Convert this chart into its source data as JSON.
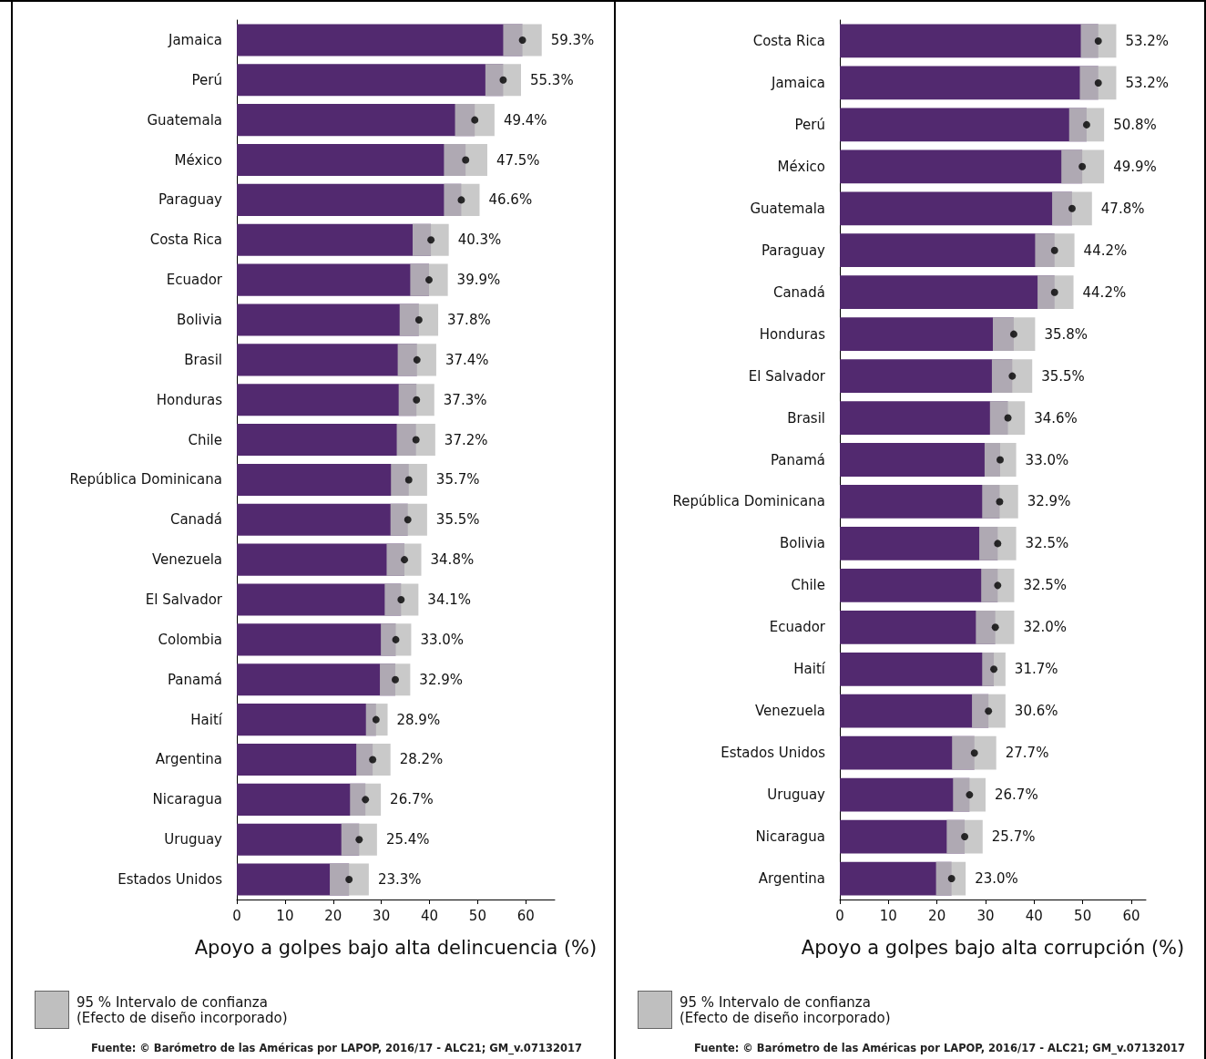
{
  "chart_data": [
    {
      "type": "bar",
      "orientation": "horizontal",
      "xlabel": "Apoyo a golpes bajo alta delincuencia (%)",
      "categories": [
        "Jamaica",
        "Perú",
        "Guatemala",
        "México",
        "Paraguay",
        "Costa Rica",
        "Ecuador",
        "Bolivia",
        "Brasil",
        "Honduras",
        "Chile",
        "República Dominicana",
        "Canadá",
        "Venezuela",
        "El Salvador",
        "Colombia",
        "Panamá",
        "Haití",
        "Argentina",
        "Nicaragua",
        "Uruguay",
        "Estados Unidos"
      ],
      "series": [
        {
          "color": "#52296f",
          "values": [
            59.3,
            55.3,
            49.4,
            47.5,
            46.6,
            40.3,
            39.9,
            37.8,
            37.4,
            37.3,
            37.2,
            35.7,
            35.5,
            34.8,
            34.1,
            33.0,
            32.9,
            28.9,
            28.2,
            26.7,
            25.4,
            23.3
          ]
        },
        {
          "type": "scatter",
          "color": "#000000",
          "values": [
            59.3,
            55.3,
            49.4,
            47.5,
            46.6,
            40.3,
            39.9,
            37.8,
            37.4,
            37.3,
            37.2,
            35.7,
            35.5,
            34.8,
            34.1,
            33.0,
            32.9,
            28.9,
            28.2,
            26.7,
            25.4,
            23.3
          ],
          "errors": [
            [
              55.3,
              63.3
            ],
            [
              51.6,
              59.0
            ],
            [
              45.3,
              53.5
            ],
            [
              43.0,
              52.0
            ],
            [
              43.0,
              50.4
            ],
            [
              36.5,
              44.0
            ],
            [
              36.0,
              43.8
            ],
            [
              33.8,
              41.8
            ],
            [
              33.4,
              41.4
            ],
            [
              33.6,
              41.0
            ],
            [
              33.2,
              41.2
            ],
            [
              32.0,
              39.5
            ],
            [
              31.9,
              39.5
            ],
            [
              31.1,
              38.3
            ],
            [
              30.7,
              37.7
            ],
            [
              29.9,
              36.2
            ],
            [
              29.7,
              36.0
            ],
            [
              26.8,
              31.3
            ],
            [
              24.8,
              31.9
            ],
            [
              23.5,
              29.9
            ],
            [
              21.7,
              29.1
            ],
            [
              19.3,
              27.4
            ]
          ],
          "value_labels": [
            "59.3%",
            "55.3%",
            "49.4%",
            "47.5%",
            "46.6%",
            "40.3%",
            "39.9%",
            "37.8%",
            "37.4%",
            "37.3%",
            "37.2%",
            "35.7%",
            "35.5%",
            "34.8%",
            "34.1%",
            "33.0%",
            "32.9%",
            "28.9%",
            "28.2%",
            "26.7%",
            "25.4%",
            "23.3%"
          ]
        }
      ],
      "marker": "circle",
      "xlim": [
        0,
        66
      ],
      "xticks": [
        0,
        10,
        20,
        30,
        40,
        50,
        60
      ],
      "grid": false,
      "annotations": [
        "95 % Intervalo de confianza\n(Efecto de diseño incorporado)",
        "Fuente: © Barómetro de las Américas por LAPOP, 2016/17 - ALC21; GM_v.07132017"
      ]
    },
    {
      "type": "bar",
      "orientation": "horizontal",
      "xlabel": "Apoyo a golpes bajo alta corrupción (%)",
      "categories": [
        "Costa Rica",
        "Jamaica",
        "Perú",
        "México",
        "Guatemala",
        "Paraguay",
        "Canadá",
        "Honduras",
        "El Salvador",
        "Brasil",
        "Panamá",
        "República Dominicana",
        "Bolivia",
        "Chile",
        "Ecuador",
        "Haití",
        "Venezuela",
        "Estados Unidos",
        "Uruguay",
        "Nicaragua",
        "Argentina"
      ],
      "series": [
        {
          "color": "#52296f",
          "values": [
            53.2,
            53.2,
            50.8,
            49.9,
            47.8,
            44.2,
            44.2,
            35.8,
            35.5,
            34.6,
            33.0,
            32.9,
            32.5,
            32.5,
            32.0,
            31.7,
            30.6,
            27.7,
            26.7,
            25.7,
            23.0
          ]
        },
        {
          "type": "scatter",
          "color": "#000000",
          "values": [
            53.2,
            53.2,
            50.8,
            49.9,
            47.8,
            44.2,
            44.2,
            35.8,
            35.5,
            34.6,
            33.0,
            32.9,
            32.5,
            32.5,
            32.0,
            31.7,
            30.6,
            27.7,
            26.7,
            25.7,
            23.0
          ],
          "errors": [
            [
              49.6,
              56.9
            ],
            [
              49.4,
              56.9
            ],
            [
              47.2,
              54.4
            ],
            [
              45.6,
              54.4
            ],
            [
              43.7,
              51.9
            ],
            [
              40.2,
              48.3
            ],
            [
              40.7,
              48.1
            ],
            [
              31.5,
              40.2
            ],
            [
              31.3,
              39.6
            ],
            [
              30.9,
              38.1
            ],
            [
              29.8,
              36.3
            ],
            [
              29.3,
              36.7
            ],
            [
              28.7,
              36.3
            ],
            [
              29.1,
              35.9
            ],
            [
              28.0,
              35.9
            ],
            [
              29.3,
              34.1
            ],
            [
              27.2,
              34.1
            ],
            [
              23.1,
              32.2
            ],
            [
              23.3,
              30.0
            ],
            [
              22.0,
              29.4
            ],
            [
              19.8,
              25.9
            ]
          ],
          "value_labels": [
            "53.2%",
            "53.2%",
            "50.8%",
            "49.9%",
            "47.8%",
            "44.2%",
            "44.2%",
            "35.8%",
            "35.5%",
            "34.6%",
            "33.0%",
            "32.9%",
            "32.5%",
            "32.5%",
            "32.0%",
            "31.7%",
            "30.6%",
            "27.7%",
            "26.7%",
            "25.7%",
            "23.0%"
          ]
        }
      ],
      "marker": "circle",
      "xlim": [
        0,
        63
      ],
      "xticks": [
        0,
        10,
        20,
        30,
        40,
        50,
        60
      ],
      "grid": false,
      "annotations": [
        "95 % Intervalo de confianza\n(Efecto de diseño incorporado)",
        "Fuente: © Barómetro de las Américas por LAPOP, 2016/17 - ALC21; GM_v.07132017"
      ]
    }
  ]
}
